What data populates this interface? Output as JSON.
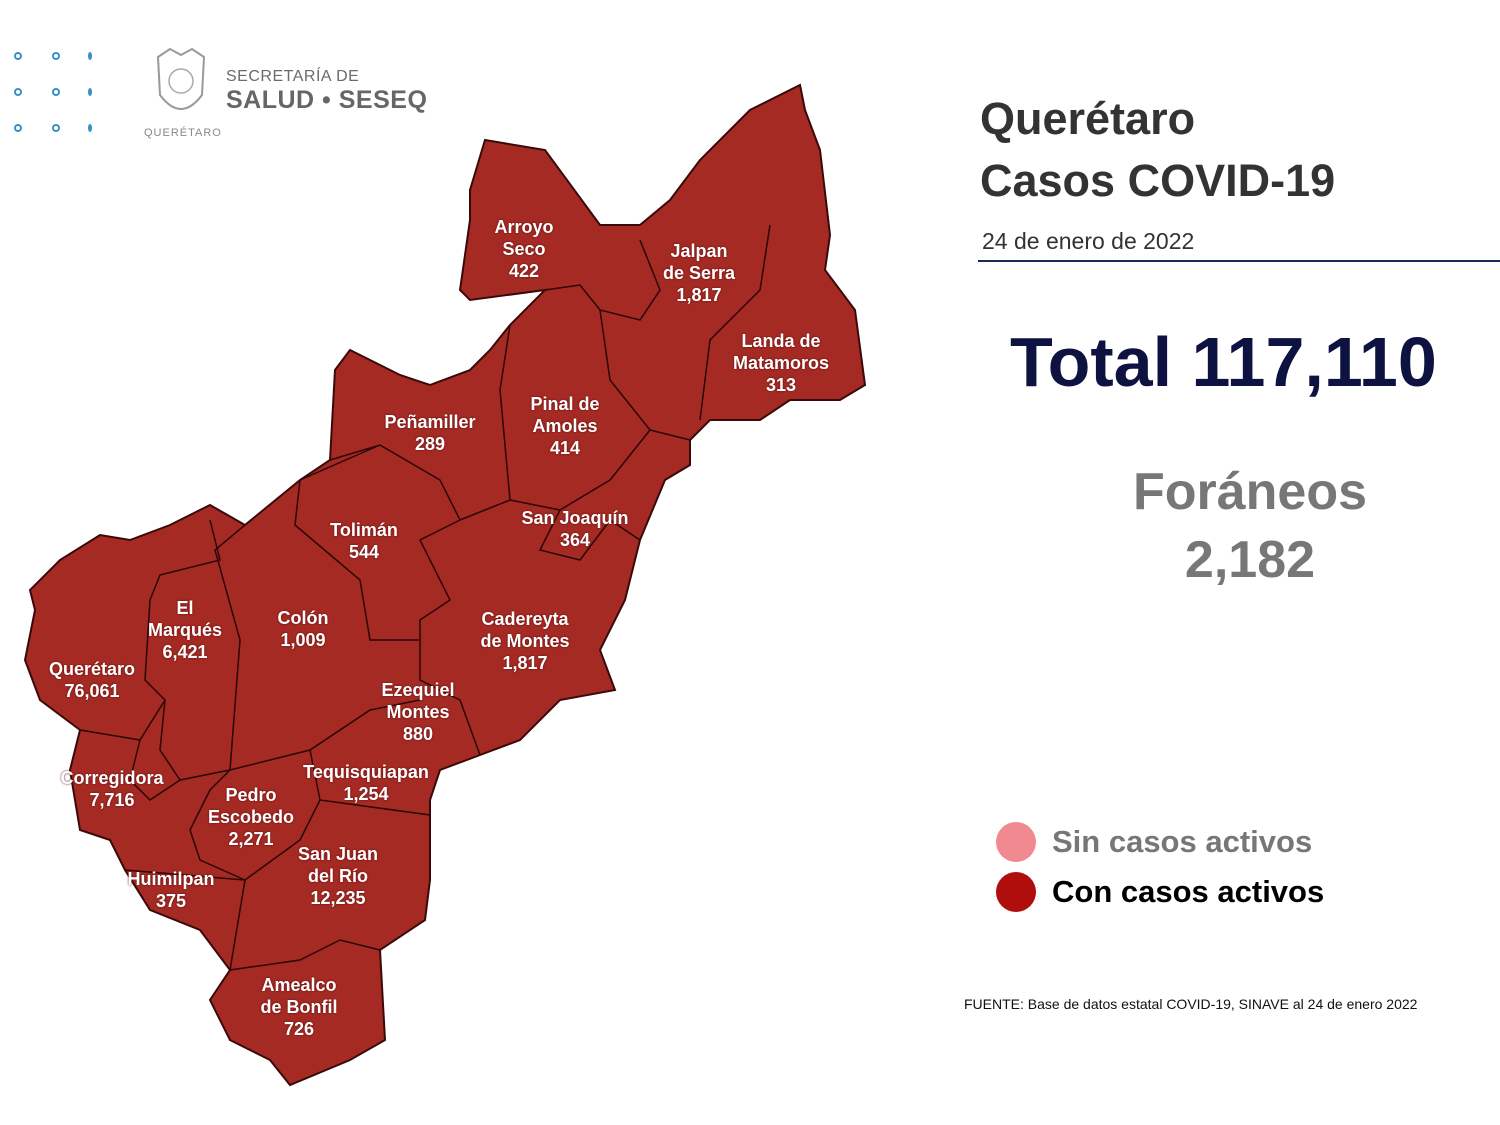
{
  "logo": {
    "line1": "SECRETARÍA DE",
    "line2": "SALUD • SESEQ",
    "state": "QUERÉTARO"
  },
  "header": {
    "title_line1": "Querétaro",
    "title_line2": "Casos COVID-19",
    "date": "24 de enero de 2022"
  },
  "total": "Total 117,110",
  "foraneos": {
    "label": "Foráneos",
    "value": "2,182"
  },
  "legend": [
    {
      "label": "Sin casos activos",
      "color": "#f08a90",
      "text_color": "#777777"
    },
    {
      "label": "Con casos activos",
      "color": "#b00d0d",
      "text_color": "#000000"
    }
  ],
  "source": "FUENTE: Base de datos estatal  COVID-19,  SINAVE  al 24 de enero 2022",
  "map_color": "#a52a24",
  "municipalities": [
    {
      "name": [
        "Arroyo",
        "Seco"
      ],
      "cases": "422",
      "status": "Con casos activos"
    },
    {
      "name": [
        "Jalpan",
        "de Serra"
      ],
      "cases": "1,817",
      "status": "Con casos activos"
    },
    {
      "name": [
        "Landa de",
        "Matamoros"
      ],
      "cases": "313",
      "status": "Con casos activos"
    },
    {
      "name": [
        "Pinal de",
        "Amoles"
      ],
      "cases": "414",
      "status": "Con casos activos"
    },
    {
      "name": [
        "Peñamiller"
      ],
      "cases": "289",
      "status": "Con casos activos"
    },
    {
      "name": [
        "San Joaquín"
      ],
      "cases": "364",
      "status": "Con casos activos"
    },
    {
      "name": [
        "Tolimán"
      ],
      "cases": "544",
      "status": "Con casos activos"
    },
    {
      "name": [
        "Cadereyta",
        "de Montes"
      ],
      "cases": "1,817",
      "status": "Con casos activos"
    },
    {
      "name": [
        "Colón"
      ],
      "cases": "1,009",
      "status": "Con casos activos"
    },
    {
      "name": [
        "El",
        "Marqués"
      ],
      "cases": "6,421",
      "status": "Con casos activos"
    },
    {
      "name": [
        "Querétaro"
      ],
      "cases": "76,061",
      "status": "Con casos activos"
    },
    {
      "name": [
        "Ezequiel",
        "Montes"
      ],
      "cases": "880",
      "status": "Con casos activos"
    },
    {
      "name": [
        "Tequisquiapan"
      ],
      "cases": "1,254",
      "status": "Con casos activos"
    },
    {
      "name": [
        "Corregidora"
      ],
      "cases": "7,716",
      "status": "Con casos activos"
    },
    {
      "name": [
        "Pedro",
        "Escobedo"
      ],
      "cases": "2,271",
      "status": "Con casos activos"
    },
    {
      "name": [
        "San Juan",
        "del Río"
      ],
      "cases": "12,235",
      "status": "Con casos activos"
    },
    {
      "name": [
        "Huimilpan"
      ],
      "cases": "375",
      "status": "Con casos activos"
    },
    {
      "name": [
        "Amealco",
        "de Bonfil"
      ],
      "cases": "726",
      "status": "Con casos activos"
    }
  ]
}
